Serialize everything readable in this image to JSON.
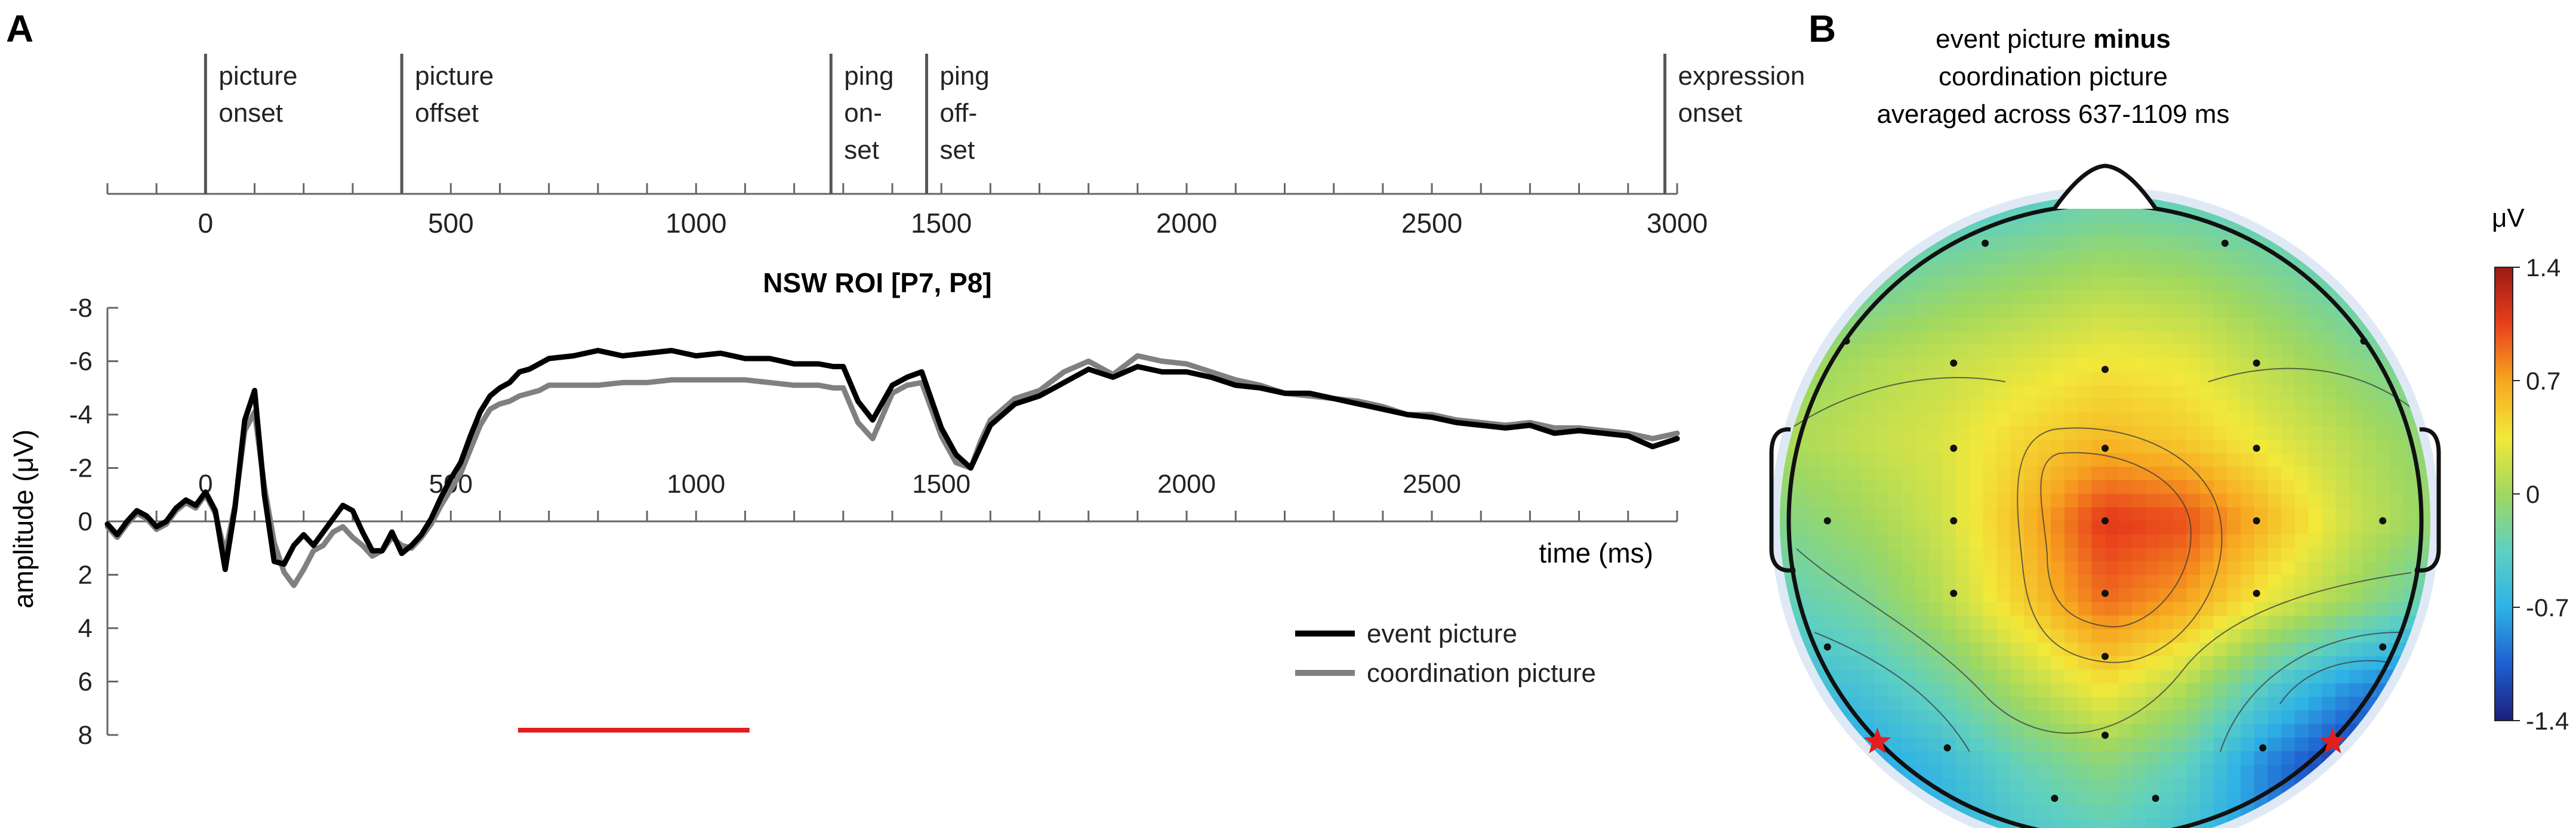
{
  "panels": {
    "a_label": "A",
    "b_label": "B"
  },
  "event_axis": {
    "xlim": [
      -200,
      3000
    ],
    "ticks": [
      0,
      500,
      1000,
      1500,
      2000,
      2500,
      3000
    ],
    "minor_step": 100,
    "events": [
      {
        "time": 0,
        "lines": [
          "picture",
          "onset"
        ]
      },
      {
        "time": 400,
        "lines": [
          "picture",
          "offset"
        ]
      },
      {
        "time": 1275,
        "lines": [
          "ping",
          "on-",
          "set"
        ]
      },
      {
        "time": 1470,
        "lines": [
          "ping",
          "off-",
          "set"
        ]
      },
      {
        "time": 2975,
        "lines": [
          "expression",
          "onset"
        ]
      }
    ]
  },
  "chart_data": [
    {
      "type": "line",
      "title": "NSW ROI [P7, P8]",
      "xlabel": "time (ms)",
      "ylabel": "amplitude (μV)",
      "xlim": [
        -200,
        3000
      ],
      "ylim": [
        -8,
        8
      ],
      "y_inverted": true,
      "x_ticks": [
        0,
        500,
        1000,
        1500,
        2000,
        2500
      ],
      "y_ticks": [
        -8,
        -6,
        -4,
        -2,
        0,
        2,
        4,
        6,
        8
      ],
      "y_tick_labels": [
        "-8",
        "-6",
        "-4",
        "-2",
        "0",
        "2",
        "4",
        "6",
        "8"
      ],
      "legend": "bottom-right",
      "significance_bar": {
        "start": 637,
        "end": 1109,
        "color": "#e02020"
      },
      "series": [
        {
          "name": "event picture",
          "color": "#000000",
          "x": [
            -200,
            -180,
            -160,
            -140,
            -120,
            -100,
            -80,
            -60,
            -40,
            -20,
            0,
            20,
            40,
            60,
            80,
            100,
            120,
            140,
            160,
            180,
            200,
            220,
            240,
            260,
            280,
            300,
            320,
            340,
            360,
            380,
            400,
            420,
            440,
            460,
            480,
            500,
            520,
            540,
            560,
            580,
            600,
            620,
            640,
            660,
            680,
            700,
            750,
            800,
            850,
            900,
            950,
            1000,
            1050,
            1100,
            1150,
            1200,
            1250,
            1280,
            1300,
            1330,
            1360,
            1400,
            1430,
            1460,
            1500,
            1530,
            1560,
            1580,
            1600,
            1650,
            1700,
            1750,
            1800,
            1850,
            1900,
            1950,
            2000,
            2050,
            2100,
            2150,
            2200,
            2250,
            2300,
            2350,
            2400,
            2450,
            2500,
            2550,
            2600,
            2650,
            2700,
            2750,
            2800,
            2850,
            2900,
            2950,
            3000
          ],
          "values": [
            0.1,
            0.5,
            0,
            -0.4,
            -0.2,
            0.2,
            0,
            -0.5,
            -0.8,
            -0.6,
            -1.1,
            -0.4,
            1.8,
            -0.5,
            -3.8,
            -4.9,
            -1.0,
            1.5,
            1.6,
            0.9,
            0.5,
            0.9,
            0.4,
            -0.1,
            -0.6,
            -0.4,
            0.4,
            1.1,
            1.1,
            0.4,
            1.2,
            0.9,
            0.5,
            -0.1,
            -0.9,
            -1.6,
            -2.2,
            -3.2,
            -4.1,
            -4.7,
            -5.0,
            -5.2,
            -5.6,
            -5.7,
            -5.9,
            -6.1,
            -6.2,
            -6.4,
            -6.2,
            -6.3,
            -6.4,
            -6.2,
            -6.3,
            -6.1,
            -6.1,
            -5.9,
            -5.9,
            -5.8,
            -5.8,
            -4.5,
            -3.8,
            -5.1,
            -5.4,
            -5.6,
            -3.5,
            -2.5,
            -2.0,
            -2.8,
            -3.6,
            -4.4,
            -4.7,
            -5.2,
            -5.7,
            -5.4,
            -5.8,
            -5.6,
            -5.6,
            -5.4,
            -5.1,
            -5.0,
            -4.8,
            -4.8,
            -4.6,
            -4.4,
            -4.2,
            -4.0,
            -3.9,
            -3.7,
            -3.6,
            -3.5,
            -3.6,
            -3.3,
            -3.4,
            -3.3,
            -3.2,
            -2.8,
            -3.1
          ]
        },
        {
          "name": "coordination picture",
          "color": "#808080",
          "x": [
            -200,
            -180,
            -160,
            -140,
            -120,
            -100,
            -80,
            -60,
            -40,
            -20,
            0,
            20,
            40,
            60,
            80,
            100,
            120,
            140,
            160,
            180,
            200,
            220,
            240,
            260,
            280,
            300,
            320,
            340,
            360,
            380,
            400,
            420,
            440,
            460,
            480,
            500,
            520,
            540,
            560,
            580,
            600,
            620,
            640,
            660,
            680,
            700,
            750,
            800,
            850,
            900,
            950,
            1000,
            1050,
            1100,
            1150,
            1200,
            1250,
            1280,
            1300,
            1330,
            1360,
            1400,
            1430,
            1460,
            1500,
            1530,
            1560,
            1580,
            1600,
            1650,
            1700,
            1750,
            1800,
            1850,
            1900,
            1950,
            2000,
            2050,
            2100,
            2150,
            2200,
            2250,
            2300,
            2350,
            2400,
            2450,
            2500,
            2550,
            2600,
            2650,
            2700,
            2750,
            2800,
            2850,
            2900,
            2950,
            3000
          ],
          "values": [
            0.2,
            0.6,
            0.1,
            -0.3,
            -0.1,
            0.3,
            0.1,
            -0.4,
            -0.7,
            -0.5,
            -1.0,
            -0.3,
            1.2,
            -0.6,
            -3.4,
            -4.1,
            -1.3,
            0.8,
            1.9,
            2.4,
            1.8,
            1.1,
            0.9,
            0.4,
            0.2,
            0.6,
            0.9,
            1.3,
            1.1,
            0.6,
            0.9,
            1.0,
            0.6,
            0.1,
            -0.6,
            -1.2,
            -1.8,
            -2.7,
            -3.6,
            -4.2,
            -4.4,
            -4.5,
            -4.7,
            -4.8,
            -4.9,
            -5.1,
            -5.1,
            -5.1,
            -5.2,
            -5.2,
            -5.3,
            -5.3,
            -5.3,
            -5.3,
            -5.2,
            -5.1,
            -5.1,
            -5.0,
            -5.0,
            -3.7,
            -3.1,
            -4.8,
            -5.1,
            -5.2,
            -3.2,
            -2.2,
            -2.0,
            -3.0,
            -3.8,
            -4.6,
            -4.9,
            -5.6,
            -6.0,
            -5.5,
            -6.2,
            -6.0,
            -5.9,
            -5.6,
            -5.3,
            -5.1,
            -4.8,
            -4.7,
            -4.6,
            -4.5,
            -4.3,
            -4.0,
            -4.0,
            -3.8,
            -3.7,
            -3.6,
            -3.7,
            -3.5,
            -3.5,
            -3.4,
            -3.3,
            -3.1,
            -3.3
          ]
        }
      ]
    },
    {
      "type": "heatmap",
      "title_lines": [
        "event picture",
        "coordination picture",
        "averaged across 637-1109 ms"
      ],
      "title_bold": "minus",
      "colorbar_unit": "μV",
      "colorbar_range": [
        -1.4,
        1.4
      ],
      "colorbar_ticks": [
        1.4,
        0.7,
        0,
        -0.7,
        -1.4
      ],
      "colorbar_tick_labels": [
        "1.4",
        "0.7",
        "0",
        "-0.7",
        "-1.4"
      ],
      "colormap": [
        "#1b1f7a",
        "#1f5fd0",
        "#2fb2e6",
        "#5fd0c0",
        "#9fd860",
        "#f2e83a",
        "#f7a620",
        "#e8401c",
        "#9a1a14"
      ],
      "grid_columns": 9,
      "grid_rows": 9,
      "grid_x_range": [
        -1,
        1
      ],
      "grid_y_range": [
        1,
        -1
      ],
      "grid_values": [
        [
          -0.6,
          -0.6,
          -0.5,
          -0.4,
          -0.3,
          -0.35,
          -0.45,
          -0.6,
          -0.7
        ],
        [
          -0.4,
          -0.3,
          -0.15,
          -0.05,
          0.05,
          0,
          -0.15,
          -0.35,
          -0.6
        ],
        [
          -0.1,
          0.05,
          0.15,
          0.25,
          0.35,
          0.3,
          0.1,
          -0.1,
          -0.3
        ],
        [
          0.05,
          0.15,
          0.25,
          0.45,
          0.6,
          0.5,
          0.3,
          0.1,
          -0.1
        ],
        [
          -0.15,
          0.0,
          0.2,
          0.6,
          1.1,
          1.0,
          0.6,
          0.2,
          -0.05
        ],
        [
          -0.35,
          -0.2,
          0.1,
          0.5,
          0.9,
          0.7,
          0.3,
          0.0,
          -0.35
        ],
        [
          -0.6,
          -0.5,
          -0.25,
          0.1,
          0.4,
          0.1,
          -0.4,
          -0.8,
          -1.0
        ],
        [
          -0.8,
          -0.8,
          -0.6,
          -0.3,
          -0.1,
          -0.35,
          -0.9,
          -1.3,
          -1.4
        ],
        [
          -0.7,
          -0.8,
          -0.75,
          -0.5,
          -0.4,
          -0.55,
          -0.9,
          -1.2,
          -1.2
        ]
      ],
      "electrodes": [
        [
          -0.38,
          0.88
        ],
        [
          0.38,
          0.88
        ],
        [
          -0.82,
          0.57
        ],
        [
          -0.48,
          0.5
        ],
        [
          0.0,
          0.48
        ],
        [
          0.48,
          0.5
        ],
        [
          0.82,
          0.57
        ],
        [
          -0.48,
          0.23
        ],
        [
          0.0,
          0.23
        ],
        [
          0.48,
          0.23
        ],
        [
          -0.88,
          0.0
        ],
        [
          -0.48,
          0.0
        ],
        [
          0.0,
          0.0
        ],
        [
          0.48,
          0.0
        ],
        [
          0.88,
          0.0
        ],
        [
          -0.48,
          -0.23
        ],
        [
          0.0,
          -0.23
        ],
        [
          0.48,
          -0.23
        ],
        [
          -0.88,
          -0.4
        ],
        [
          0.0,
          -0.43
        ],
        [
          0.88,
          -0.4
        ],
        [
          -0.5,
          -0.72
        ],
        [
          0.0,
          -0.68
        ],
        [
          0.5,
          -0.72
        ],
        [
          -0.16,
          -0.88
        ],
        [
          0.16,
          -0.88
        ]
      ],
      "marked_electrodes": [
        [
          -0.7,
          -0.68
        ],
        [
          0.7,
          -0.68
        ]
      ],
      "marker_color": "#e02020"
    }
  ]
}
